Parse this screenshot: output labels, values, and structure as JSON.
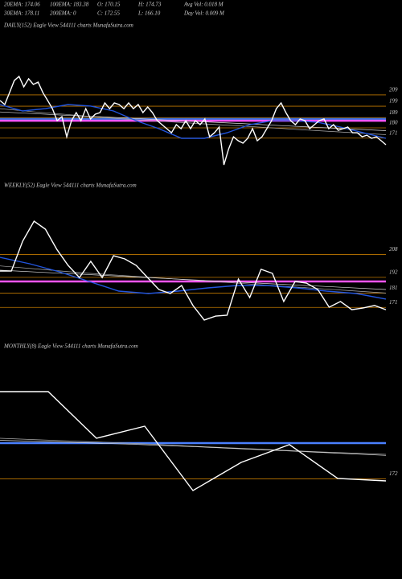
{
  "header": [
    [
      "20EMA: 174.06",
      "100EMA: 183.38",
      "O: 170.15",
      "H: 174.73",
      "Avg Vol: 0.018  M"
    ],
    [
      "30EMA: 178.11",
      "200EMA: 0",
      "C: 172.55",
      "L: 166.10",
      "Day Vol: 0.009 M"
    ]
  ],
  "chart_data": [
    {
      "type": "line",
      "title": "DAILY(152) Eagle   View  544111 charts MunafaSutra.com",
      "ylim": [
        144,
        264
      ],
      "yticks": [
        171,
        180,
        189,
        199,
        209
      ],
      "tick_color": "#c07800",
      "levels": [
        {
          "value": 187.8,
          "color": "#3a6fe0"
        },
        {
          "value": 186.3,
          "color": "#ff55ff"
        }
      ],
      "series": [
        {
          "color": "#aaaaaa",
          "values": [
            196.9,
            194.0,
            191.5,
            189.0,
            186.8,
            185.0,
            183.2,
            181.4,
            179.5,
            177.6,
            175.8,
            174.0
          ]
        },
        {
          "color": "#dddddd",
          "values": [
            194.0,
            192.5,
            190.8,
            189.5,
            188.0,
            186.5,
            185.0,
            183.6,
            182.0,
            180.5,
            179.0,
            177.5
          ]
        },
        {
          "color": "#2255dd",
          "values": [
            200.5,
            194.8,
            196.9,
            200.5,
            199.1,
            194.8,
            186.3,
            179.3,
            170.8,
            170.8,
            175.7,
            182.8,
            186.3,
            186.3,
            184.9,
            180.7,
            175.7,
            170.8
          ]
        },
        {
          "color": "#ffffff",
          "values": [
            204.0,
            200.5,
            211.0,
            221.6,
            225.2,
            216.0,
            223.1,
            218.1,
            220.2,
            211.0,
            204.0,
            196.9,
            186.3,
            189.9,
            172.2,
            186.3,
            193.4,
            186.3,
            196.9,
            187.8,
            192.0,
            193.4,
            201.9,
            196.9,
            201.9,
            200.5,
            196.9,
            201.9,
            196.9,
            200.5,
            193.4,
            198.3,
            193.4,
            186.3,
            182.8,
            179.3,
            175.7,
            182.8,
            179.3,
            186.3,
            179.3,
            186.3,
            182.8,
            187.8,
            172.2,
            175.7,
            180.7,
            147.5,
            161.6,
            172.2,
            168.7,
            166.6,
            170.8,
            179.3,
            168.7,
            172.2,
            179.3,
            186.3,
            196.9,
            201.9,
            193.4,
            186.3,
            182.8,
            187.8,
            186.3,
            179.3,
            182.8,
            186.3,
            187.8,
            179.3,
            182.8,
            177.9,
            179.3,
            180.7,
            175.7,
            175.7,
            172.2,
            173.6,
            170.8,
            172.2,
            168.7,
            165.2
          ]
        }
      ]
    },
    {
      "type": "line",
      "title": "WEEKLY(52) Eagle   View  544111 charts MunafaSutra.com",
      "ylim": [
        161,
        251
      ],
      "yticks": [
        171,
        181,
        192,
        208
      ],
      "tick_color": "#c07800",
      "levels": [
        {
          "value": 189.1,
          "color": "#ff55ff"
        }
      ],
      "series": [
        {
          "color": "#aaaaaa",
          "values": [
            200.0,
            197.5,
            195.0,
            193.0,
            191.0,
            189.0,
            187.0,
            185.0,
            183.0,
            181.0
          ]
        },
        {
          "color": "#dddddd",
          "values": [
            197.0,
            195.5,
            194.0,
            192.5,
            191.0,
            189.5,
            188.0,
            186.5,
            185.0,
            183.5
          ]
        },
        {
          "color": "#2255dd",
          "values": [
            206.0,
            201.5,
            195.9,
            189.1,
            182.4,
            180.7,
            182.4,
            184.6,
            186.3,
            186.3,
            184.6,
            182.4,
            180.7,
            176.8
          ]
        },
        {
          "color": "#ffffff",
          "values": [
            196.4,
            196.4,
            217.3,
            231.3,
            225.7,
            211.6,
            200.4,
            191.9,
            203.2,
            191.9,
            207.1,
            204.9,
            200.4,
            191.9,
            183.5,
            180.7,
            186.3,
            172.3,
            162.1,
            164.9,
            165.5,
            190.8,
            177.9,
            197.6,
            194.8,
            175.1,
            189.1,
            188.0,
            183.5,
            171.1,
            175.1,
            169.4,
            170.6,
            172.3,
            169.4
          ]
        }
      ]
    },
    {
      "type": "line",
      "title": "MONTHLY(8) Eagle   View  544111 charts MunafaSutra.com",
      "ylim": [
        160,
        300
      ],
      "yticks": [
        172
      ],
      "tick_color": "#c07800",
      "levels": [
        {
          "value": 208.6,
          "color": "#4a80ff"
        }
      ],
      "series": [
        {
          "color": "#aaaaaa",
          "values": [
            213.5,
            211.0,
            208.5,
            205.5,
            202.5,
            199.5,
            197.1
          ]
        },
        {
          "color": "#dddddd",
          "values": [
            211.5,
            209.5,
            207.5,
            205.0,
            202.0,
            199.0,
            196.0
          ]
        },
        {
          "color": "#ffffff",
          "values": [
            261.3,
            261.3,
            213.5,
            225.9,
            160.0,
            188.8,
            207.0,
            172.4,
            169.9
          ]
        }
      ]
    }
  ]
}
